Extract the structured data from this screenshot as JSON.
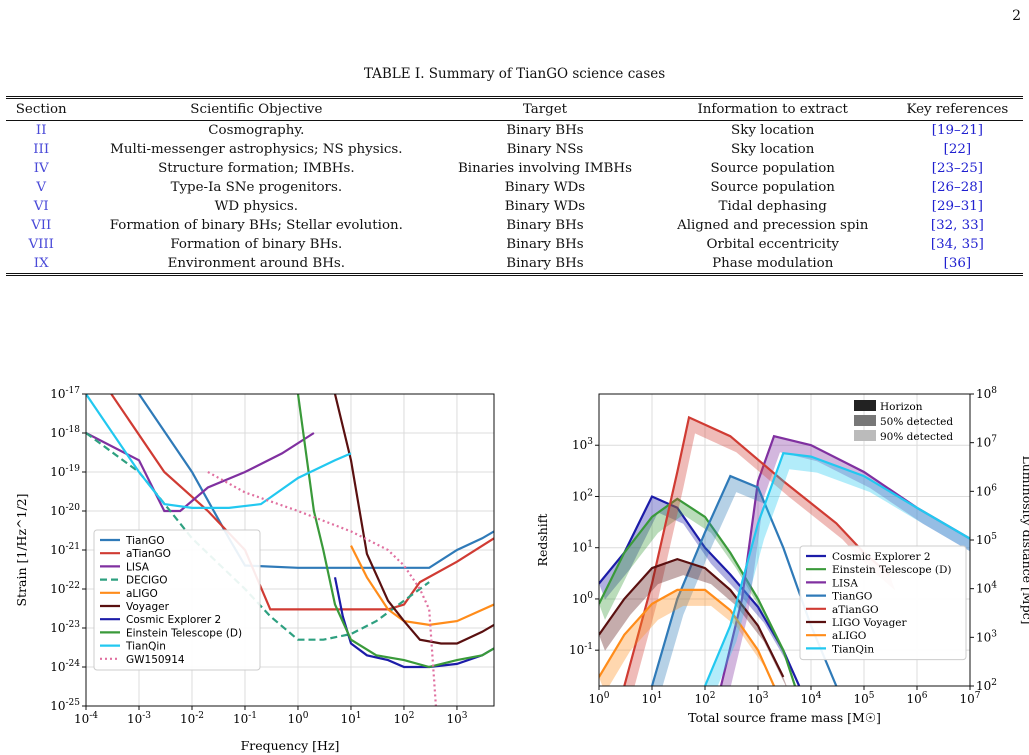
{
  "page_number": "2",
  "table": {
    "caption": "TABLE I. Summary of TianGO science cases",
    "headers": [
      "Section",
      "Scientific Objective",
      "Target",
      "Information to extract",
      "Key references"
    ],
    "rows": [
      [
        "II",
        "Cosmography.",
        "Binary BHs",
        "Sky location",
        "[19–21]"
      ],
      [
        "III",
        "Multi-messenger astrophysics; NS physics.",
        "Binary NSs",
        "Sky location",
        "[22]"
      ],
      [
        "IV",
        "Structure formation; IMBHs.",
        "Binaries involving IMBHs",
        "Source population",
        "[23–25]"
      ],
      [
        "V",
        "Type-Ia SNe progenitors.",
        "Binary WDs",
        "Source population",
        "[26–28]"
      ],
      [
        "VI",
        "WD physics.",
        "Binary WDs",
        "Tidal dephasing",
        "[29–31]"
      ],
      [
        "VII",
        "Formation of binary BHs; Stellar evolution.",
        "Binary BHs",
        "Aligned and precession spin",
        "[32, 33]"
      ],
      [
        "VIII",
        "Formation of binary BHs.",
        "Binary BHs",
        "Orbital eccentricity",
        "[34, 35]"
      ],
      [
        "IX",
        "Environment around BHs.",
        "Binary BHs",
        "Phase modulation",
        "[36]"
      ]
    ]
  },
  "chart_data": [
    {
      "type": "line",
      "xlabel": "Frequency [Hz]",
      "ylabel": "Strain [1/Hz^1/2]",
      "xscale": "log",
      "yscale": "log",
      "xlim": [
        0.0001,
        5000
      ],
      "ylim": [
        1e-25,
        1e-17
      ],
      "x_ticks": [
        "10^-4",
        "10^-3",
        "10^-2",
        "10^-1",
        "10^0",
        "10^1",
        "10^2",
        "10^3"
      ],
      "y_ticks": [
        "10^-25",
        "10^-24",
        "10^-23",
        "10^-22",
        "10^-21",
        "10^-20",
        "10^-19",
        "10^-18",
        "10^-17"
      ],
      "grid": true,
      "legend_position": "lower-left",
      "series": [
        {
          "name": "TianGO",
          "color": "#2f7ab8",
          "style": "solid",
          "points": [
            [
              0.001,
              1e-17
            ],
            [
              0.01,
              1e-19
            ],
            [
              0.05,
              2e-21
            ],
            [
              0.1,
              4e-22
            ],
            [
              1,
              3.5e-22
            ],
            [
              10,
              3.5e-22
            ],
            [
              100,
              3.5e-22
            ],
            [
              300,
              3.5e-22
            ],
            [
              1000,
              1e-21
            ],
            [
              3000,
              2e-21
            ],
            [
              5000,
              3e-21
            ]
          ]
        },
        {
          "name": "aTianGO",
          "color": "#d03b33",
          "style": "solid",
          "points": [
            [
              0.0003,
              1e-17
            ],
            [
              0.003,
              1e-19
            ],
            [
              0.02,
              1e-20
            ],
            [
              0.1,
              1e-21
            ],
            [
              0.3,
              3e-23
            ],
            [
              1,
              3e-23
            ],
            [
              10,
              3e-23
            ],
            [
              50,
              3e-23
            ],
            [
              100,
              4e-23
            ],
            [
              200,
              1.5e-22
            ],
            [
              1000,
              5e-22
            ],
            [
              5000,
              2e-21
            ]
          ]
        },
        {
          "name": "LISA",
          "color": "#8030a0",
          "style": "solid",
          "points": [
            [
              0.0001,
              1e-18
            ],
            [
              0.001,
              2e-19
            ],
            [
              0.003,
              1e-20
            ],
            [
              0.006,
              1e-20
            ],
            [
              0.02,
              4e-20
            ],
            [
              0.1,
              1e-19
            ],
            [
              0.5,
              3e-19
            ],
            [
              2,
              1e-18
            ]
          ]
        },
        {
          "name": "DECIGO",
          "color": "#2ea080",
          "style": "dashed",
          "points": [
            [
              0.0001,
              1e-18
            ],
            [
              0.001,
              1e-19
            ],
            [
              0.01,
              2e-21
            ],
            [
              0.1,
              1e-22
            ],
            [
              0.3,
              2e-23
            ],
            [
              1,
              5e-24
            ],
            [
              3,
              5e-24
            ],
            [
              10,
              7e-24
            ],
            [
              30,
              1.5e-23
            ],
            [
              100,
              5e-23
            ],
            [
              300,
              1.5e-22
            ]
          ]
        },
        {
          "name": "aLIGO",
          "color": "#ff8c1a",
          "style": "solid",
          "points": [
            [
              10,
              1.3e-21
            ],
            [
              20,
              2e-22
            ],
            [
              50,
              3e-23
            ],
            [
              100,
              1.5e-23
            ],
            [
              300,
              1.2e-23
            ],
            [
              1000,
              1.5e-23
            ],
            [
              5000,
              4e-23
            ]
          ]
        },
        {
          "name": "Voyager",
          "color": "#5a1010",
          "style": "solid",
          "points": [
            [
              5,
              1e-17
            ],
            [
              10,
              2e-19
            ],
            [
              20,
              8e-22
            ],
            [
              50,
              5e-23
            ],
            [
              100,
              1.5e-23
            ],
            [
              200,
              5e-24
            ],
            [
              500,
              4e-24
            ],
            [
              1000,
              4e-24
            ],
            [
              3000,
              8e-24
            ],
            [
              5000,
              1.2e-23
            ]
          ]
        },
        {
          "name": "Cosmic Explorer 2",
          "color": "#1c1ca8",
          "style": "solid",
          "points": [
            [
              5,
              2e-22
            ],
            [
              7,
              2e-23
            ],
            [
              10,
              4e-24
            ],
            [
              20,
              2e-24
            ],
            [
              50,
              1.5e-24
            ],
            [
              100,
              1e-24
            ],
            [
              300,
              1e-24
            ],
            [
              1000,
              1.2e-24
            ],
            [
              3000,
              2e-24
            ],
            [
              5000,
              3e-24
            ]
          ]
        },
        {
          "name": "Einstein Telescope (D)",
          "color": "#3a9a3a",
          "style": "solid",
          "points": [
            [
              1,
              1e-17
            ],
            [
              2,
              1e-20
            ],
            [
              3,
              1e-21
            ],
            [
              5,
              4e-23
            ],
            [
              10,
              5e-24
            ],
            [
              30,
              2e-24
            ],
            [
              100,
              1.5e-24
            ],
            [
              300,
              1e-24
            ],
            [
              1000,
              1.5e-24
            ],
            [
              3000,
              2e-24
            ],
            [
              5000,
              3e-24
            ]
          ]
        },
        {
          "name": "TianQin",
          "color": "#22c8f0",
          "style": "solid",
          "points": [
            [
              0.0001,
              1e-17
            ],
            [
              0.001,
              1e-19
            ],
            [
              0.003,
              1.5e-20
            ],
            [
              0.01,
              1.2e-20
            ],
            [
              0.05,
              1.2e-20
            ],
            [
              0.2,
              1.5e-20
            ],
            [
              1,
              7e-20
            ],
            [
              5,
              2e-19
            ],
            [
              10,
              3e-19
            ]
          ]
        },
        {
          "name": "GW150914",
          "color": "#e070a0",
          "style": "dotted",
          "points": [
            [
              0.02,
              1e-19
            ],
            [
              0.1,
              3e-20
            ],
            [
              1,
              1e-20
            ],
            [
              10,
              3e-21
            ],
            [
              50,
              1e-21
            ],
            [
              100,
              4e-22
            ],
            [
              200,
              1e-22
            ],
            [
              300,
              3e-23
            ],
            [
              400,
              1e-25
            ]
          ]
        }
      ]
    },
    {
      "type": "area",
      "xlabel": "Total source frame mass [M☉]",
      "ylabel": "Redshift",
      "ylabel_right": "Luminosity distance [Mpc]",
      "xscale": "log",
      "yscale": "log",
      "xlim": [
        1,
        10000000
      ],
      "ylim": [
        0.02,
        10000
      ],
      "x_ticks": [
        "10^0",
        "10^1",
        "10^2",
        "10^3",
        "10^4",
        "10^5",
        "10^6",
        "10^7"
      ],
      "y_ticks": [
        "10^-1",
        "10^0",
        "10^1",
        "10^2",
        "10^3"
      ],
      "y_ticks_right": [
        "10^2",
        "10^3",
        "10^4",
        "10^5",
        "10^6",
        "10^7",
        "10^8"
      ],
      "grid": true,
      "legend_position": "lower-right",
      "shade_legend": [
        "Horizon",
        "50% detected",
        "90% detected"
      ],
      "series": [
        {
          "name": "Cosmic Explorer 2",
          "color": "#1c1ca8",
          "points": [
            [
              1,
              2
            ],
            [
              3,
              8
            ],
            [
              10,
              100
            ],
            [
              30,
              60
            ],
            [
              100,
              10
            ],
            [
              300,
              3
            ],
            [
              1000,
              0.7
            ],
            [
              3000,
              0.1
            ],
            [
              6000,
              0.02
            ]
          ]
        },
        {
          "name": "Einstein Telescope (D)",
          "color": "#3a9a3a",
          "points": [
            [
              1,
              0.8
            ],
            [
              3,
              8
            ],
            [
              10,
              40
            ],
            [
              30,
              90
            ],
            [
              100,
              40
            ],
            [
              300,
              8
            ],
            [
              1000,
              1
            ],
            [
              3000,
              0.1
            ],
            [
              5000,
              0.02
            ]
          ]
        },
        {
          "name": "LISA",
          "color": "#8030a0",
          "points": [
            [
              200,
              0.02
            ],
            [
              500,
              1
            ],
            [
              1000,
              200
            ],
            [
              2000,
              1500
            ],
            [
              10000,
              1000
            ],
            [
              100000,
              300
            ],
            [
              1000000,
              60
            ],
            [
              10000000,
              15
            ]
          ]
        },
        {
          "name": "TianGO",
          "color": "#2f7ab8",
          "points": [
            [
              10,
              0.02
            ],
            [
              30,
              1
            ],
            [
              100,
              20
            ],
            [
              300,
              250
            ],
            [
              1000,
              150
            ],
            [
              3000,
              10
            ],
            [
              10000,
              0.3
            ],
            [
              30000,
              0.02
            ]
          ]
        },
        {
          "name": "aTianGO",
          "color": "#d03b33",
          "points": [
            [
              3,
              0.02
            ],
            [
              10,
              2
            ],
            [
              30,
              300
            ],
            [
              50,
              3500
            ],
            [
              300,
              1500
            ],
            [
              3000,
              200
            ],
            [
              30000,
              30
            ],
            [
              100000,
              8
            ],
            [
              300000,
              3
            ]
          ]
        },
        {
          "name": "LIGO Voyager",
          "color": "#5a1010",
          "points": [
            [
              1,
              0.2
            ],
            [
              3,
              1
            ],
            [
              10,
              4
            ],
            [
              30,
              6
            ],
            [
              100,
              4
            ],
            [
              300,
              1.5
            ],
            [
              1000,
              0.3
            ],
            [
              3000,
              0.03
            ]
          ]
        },
        {
          "name": "aLIGO",
          "color": "#ff8c1a",
          "points": [
            [
              1,
              0.03
            ],
            [
              3,
              0.2
            ],
            [
              10,
              0.8
            ],
            [
              30,
              1.5
            ],
            [
              100,
              1.5
            ],
            [
              300,
              0.6
            ],
            [
              1000,
              0.1
            ],
            [
              2000,
              0.02
            ]
          ]
        },
        {
          "name": "TianQin",
          "color": "#22c8f0",
          "points": [
            [
              100,
              0.02
            ],
            [
              300,
              0.3
            ],
            [
              1000,
              30
            ],
            [
              3000,
              700
            ],
            [
              10000,
              600
            ],
            [
              100000,
              250
            ],
            [
              1000000,
              60
            ],
            [
              10000000,
              15
            ]
          ]
        }
      ]
    }
  ]
}
